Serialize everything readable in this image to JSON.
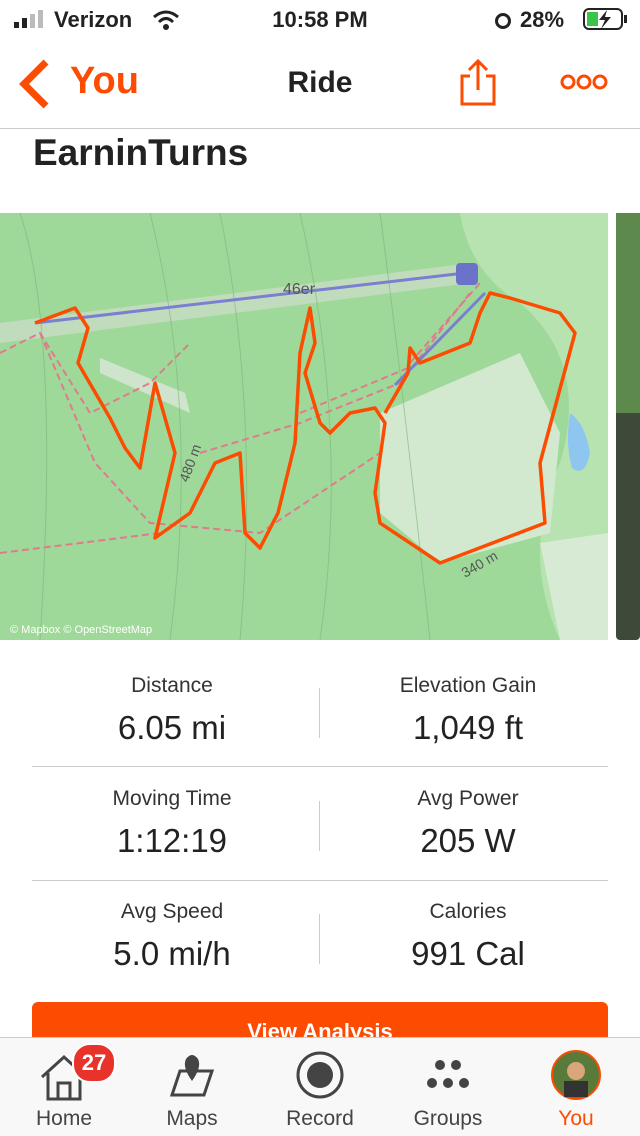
{
  "status_bar": {
    "carrier": "Verizon",
    "time": "10:58 PM",
    "battery": "28%"
  },
  "nav": {
    "back": "You",
    "title": "Ride"
  },
  "activity": {
    "title": "EarninTurns"
  },
  "map": {
    "lift_label": "46er",
    "contour_labels": [
      "480 m",
      "340 m"
    ],
    "attribution": "© Mapbox © OpenStreetMap"
  },
  "stats": [
    {
      "label": "Distance",
      "value": "6.05 mi"
    },
    {
      "label": "Elevation Gain",
      "value": "1,049 ft"
    },
    {
      "label": "Moving Time",
      "value": "1:12:19"
    },
    {
      "label": "Avg Power",
      "value": "205 W"
    },
    {
      "label": "Avg Speed",
      "value": "5.0 mi/h"
    },
    {
      "label": "Calories",
      "value": "991 Cal"
    }
  ],
  "button": "View Analysis",
  "tabs": [
    {
      "label": "Home",
      "badge": "27"
    },
    {
      "label": "Maps"
    },
    {
      "label": "Record"
    },
    {
      "label": "Groups"
    },
    {
      "label": "You"
    }
  ]
}
